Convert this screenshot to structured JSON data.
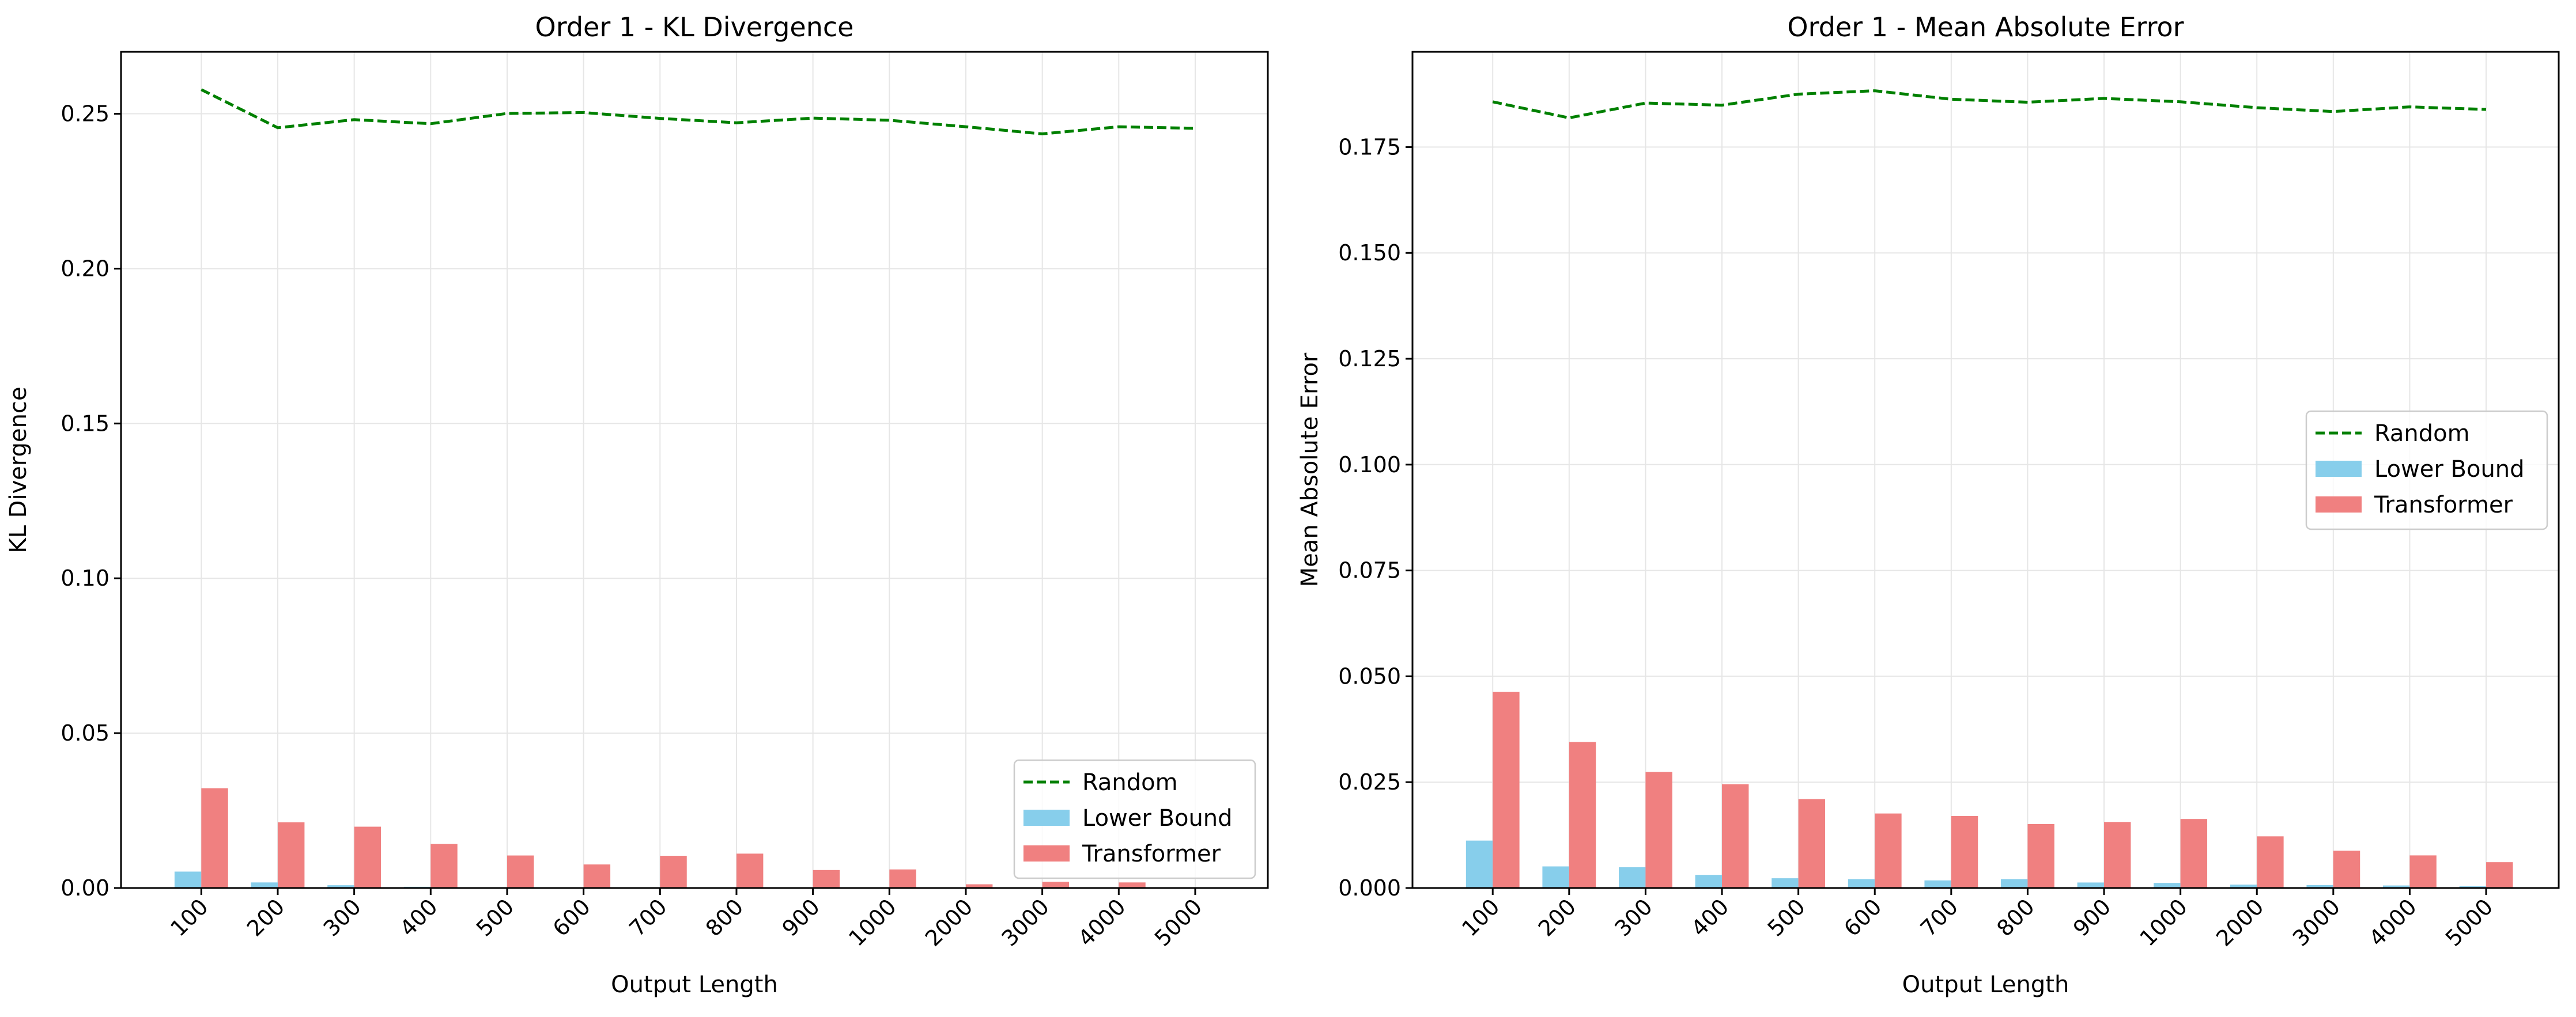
{
  "colors": {
    "random": "#008000",
    "lower_bound": "#87ceeb",
    "transformer": "#f08080",
    "grid": "#e6e6e6"
  },
  "chart_data": [
    {
      "type": "bar",
      "title": "Order 1 - KL Divergence",
      "xlabel": "Output Length",
      "ylabel": "KL Divergence",
      "categories": [
        "100",
        "200",
        "300",
        "400",
        "500",
        "600",
        "700",
        "800",
        "900",
        "1000",
        "2000",
        "3000",
        "4000",
        "5000"
      ],
      "ylim": [
        0,
        0.27
      ],
      "yticks": [
        0.0,
        0.05,
        0.1,
        0.15,
        0.2,
        0.25
      ],
      "ytick_labels": [
        "0.00",
        "0.05",
        "0.10",
        "0.15",
        "0.20",
        "0.25"
      ],
      "grid": true,
      "legend_position": "lower right",
      "series": [
        {
          "name": "Random",
          "kind": "line",
          "style": "dashed",
          "values": [
            0.2578,
            0.2455,
            0.2481,
            0.2468,
            0.2501,
            0.2504,
            0.2485,
            0.2471,
            0.2486,
            0.2479,
            0.2458,
            0.2435,
            0.2458,
            0.2453
          ]
        },
        {
          "name": "Lower Bound",
          "kind": "bar",
          "values": [
            0.0053,
            0.0018,
            0.0009,
            0.0004,
            0.0002,
            0.0002,
            0.0002,
            0.0002,
            0.0001,
            0.0001,
            0.0001,
            0.0001,
            0.0001,
            0.0001
          ]
        },
        {
          "name": "Transformer",
          "kind": "bar",
          "values": [
            0.0322,
            0.0212,
            0.0198,
            0.0142,
            0.0105,
            0.0076,
            0.0104,
            0.0111,
            0.0058,
            0.006,
            0.0012,
            0.002,
            0.0018,
            0.0001
          ]
        }
      ]
    },
    {
      "type": "bar",
      "title": "Order 1 - Mean Absolute Error",
      "xlabel": "Output Length",
      "ylabel": "Mean Absolute Error",
      "categories": [
        "100",
        "200",
        "300",
        "400",
        "500",
        "600",
        "700",
        "800",
        "900",
        "1000",
        "2000",
        "3000",
        "4000",
        "5000"
      ],
      "ylim": [
        0,
        0.1975
      ],
      "yticks": [
        0.0,
        0.025,
        0.05,
        0.075,
        0.1,
        0.125,
        0.15,
        0.175
      ],
      "ytick_labels": [
        "0.000",
        "0.025",
        "0.050",
        "0.075",
        "0.100",
        "0.125",
        "0.150",
        "0.175"
      ],
      "grid": true,
      "legend_position": "center right",
      "series": [
        {
          "name": "Random",
          "kind": "line",
          "style": "dashed",
          "values": [
            0.1857,
            0.1819,
            0.1854,
            0.1849,
            0.1875,
            0.1883,
            0.1863,
            0.1856,
            0.1865,
            0.1857,
            0.1843,
            0.1834,
            0.1845,
            0.1839
          ]
        },
        {
          "name": "Lower Bound",
          "kind": "bar",
          "values": [
            0.0112,
            0.0051,
            0.0049,
            0.0031,
            0.0023,
            0.0021,
            0.0018,
            0.0021,
            0.0013,
            0.0012,
            0.0008,
            0.0007,
            0.0006,
            0.0004
          ]
        },
        {
          "name": "Transformer",
          "kind": "bar",
          "values": [
            0.0463,
            0.0345,
            0.0274,
            0.0245,
            0.021,
            0.0176,
            0.017,
            0.0151,
            0.0156,
            0.0163,
            0.0122,
            0.0088,
            0.0077,
            0.0061
          ]
        }
      ]
    }
  ]
}
